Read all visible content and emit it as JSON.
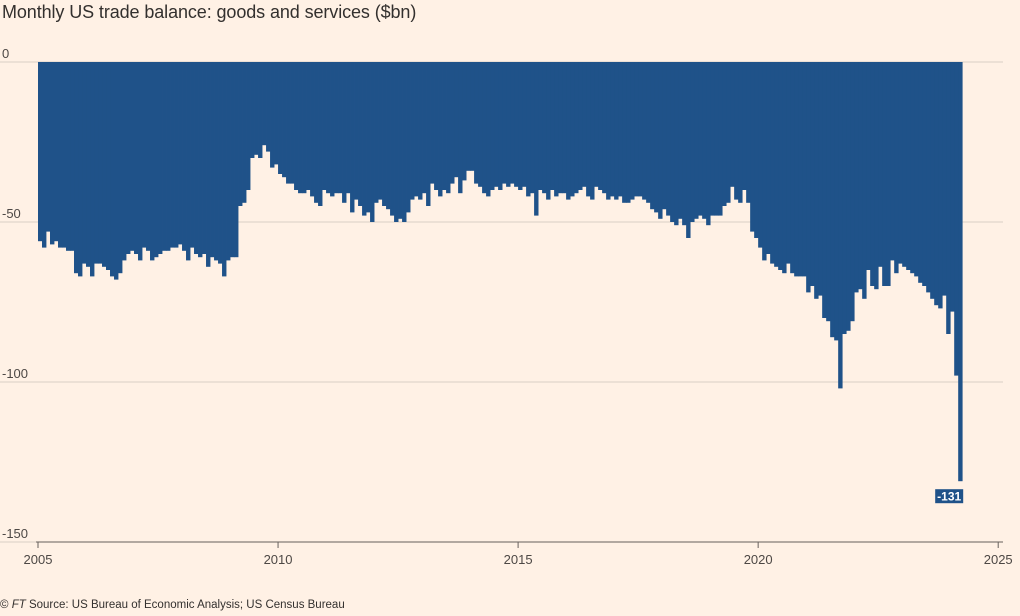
{
  "chart_data": {
    "type": "bar",
    "title": "Monthly US trade balance: goods and services ($bn)",
    "xlabel": "",
    "ylabel": "",
    "x_start": "2005-01",
    "x_end": "2025-01",
    "xlim": [
      2005,
      2025.1
    ],
    "ylim": [
      -150,
      0
    ],
    "x_ticks": [
      2005,
      2010,
      2015,
      2020,
      2025
    ],
    "x_tick_labels": [
      "2005",
      "2010",
      "2015",
      "2020",
      "2025"
    ],
    "y_ticks": [
      0,
      -50,
      -100,
      -150
    ],
    "y_tick_labels": [
      "0",
      "-50",
      "-100",
      "-150"
    ],
    "grid": true,
    "bar_color": "#1f5289",
    "values": [
      -56,
      -58,
      -53,
      -57,
      -56,
      -58,
      -58,
      -59,
      -59,
      -66,
      -67,
      -63,
      -64,
      -67,
      -63,
      -63,
      -64,
      -65,
      -67,
      -68,
      -66,
      -62,
      -60,
      -59,
      -60,
      -62,
      -58,
      -59,
      -62,
      -61,
      -60,
      -59,
      -59,
      -58,
      -58,
      -57,
      -59,
      -62,
      -58,
      -60,
      -61,
      -60,
      -64,
      -61,
      -62,
      -63,
      -67,
      -62,
      -61,
      -61,
      -45,
      -44,
      -40,
      -30,
      -29,
      -30,
      -26,
      -28,
      -33,
      -32,
      -35,
      -36,
      -38,
      -38,
      -40,
      -41,
      -41,
      -40,
      -42,
      -44,
      -45,
      -40,
      -41,
      -42,
      -41,
      -41,
      -44,
      -41,
      -47,
      -43,
      -45,
      -48,
      -47,
      -50,
      -44,
      -43,
      -45,
      -46,
      -48,
      -50,
      -49,
      -50,
      -47,
      -43,
      -42,
      -43,
      -41,
      -45,
      -38,
      -40,
      -42,
      -40,
      -41,
      -38,
      -36,
      -41,
      -37,
      -34,
      -34,
      -38,
      -39,
      -41,
      -42,
      -40,
      -39,
      -40,
      -38,
      -39,
      -38,
      -39,
      -40,
      -39,
      -42,
      -41,
      -48,
      -40,
      -41,
      -43,
      -40,
      -42,
      -41,
      -41,
      -43,
      -42,
      -41,
      -40,
      -39,
      -42,
      -43,
      -39,
      -40,
      -41,
      -43,
      -42,
      -43,
      -42,
      -44,
      -44,
      -43,
      -42,
      -42,
      -43,
      -44,
      -46,
      -47,
      -49,
      -46,
      -48,
      -50,
      -51,
      -49,
      -51,
      -55,
      -50,
      -49,
      -48,
      -49,
      -51,
      -48,
      -48,
      -48,
      -45,
      -44,
      -39,
      -43,
      -44,
      -40,
      -44,
      -53,
      -55,
      -58,
      -62,
      -60,
      -63,
      -64,
      -65,
      -66,
      -63,
      -66,
      -67,
      -67,
      -67,
      -72,
      -70,
      -74,
      -73,
      -80,
      -81,
      -86,
      -87,
      -102,
      -85,
      -84,
      -81,
      -72,
      -71,
      -74,
      -65,
      -70,
      -71,
      -64,
      -70,
      -70,
      -62,
      -66,
      -63,
      -64,
      -65,
      -66,
      -67,
      -69,
      -70,
      -72,
      -74,
      -76,
      -77,
      -73,
      -85,
      -78,
      -98,
      -131
    ],
    "annotations": [
      {
        "label": "-131"
      }
    ]
  },
  "footer": {
    "copyright": "©",
    "brand": "FT",
    "source": "Source: US Bureau of Economic Analysis; US Census Bureau"
  }
}
